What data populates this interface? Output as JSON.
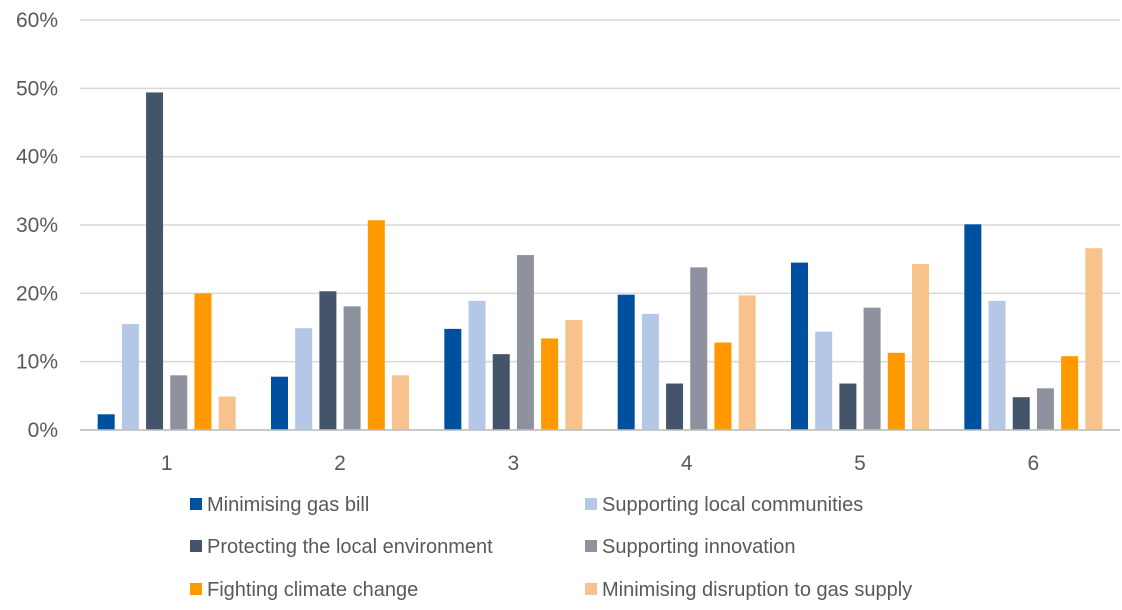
{
  "chart_data": {
    "type": "bar",
    "title": "",
    "xlabel": "",
    "ylabel": "",
    "categories": [
      "1",
      "2",
      "3",
      "4",
      "5",
      "6"
    ],
    "ylim": [
      0,
      60
    ],
    "y_ticks": [
      "0%",
      "10%",
      "20%",
      "30%",
      "40%",
      "50%",
      "60%"
    ],
    "y_tick_values": [
      0,
      10,
      20,
      30,
      40,
      50,
      60
    ],
    "y_unit": "%",
    "grid": "horizontal",
    "legend_position": "bottom",
    "series": [
      {
        "name": "Minimising gas bill",
        "color": "#0050A0",
        "values": [
          2.3,
          7.8,
          14.8,
          19.8,
          24.5,
          30.1
        ]
      },
      {
        "name": "Supporting local communities",
        "color": "#B4C7E7",
        "values": [
          15.5,
          14.9,
          18.9,
          17.0,
          14.4,
          18.9
        ]
      },
      {
        "name": "Protecting the local environment",
        "color": "#44546A",
        "values": [
          49.4,
          20.3,
          11.1,
          6.8,
          6.8,
          4.8
        ]
      },
      {
        "name": "Supporting innovation",
        "color": "#8E929E",
        "values": [
          8.0,
          18.1,
          25.6,
          23.8,
          17.9,
          6.1
        ]
      },
      {
        "name": "Fighting climate change",
        "color": "#FF9900",
        "values": [
          20.0,
          30.7,
          13.4,
          12.8,
          11.3,
          10.8
        ]
      },
      {
        "name": "Minimising disruption to gas supply",
        "color": "#F8C28C",
        "values": [
          4.9,
          8.0,
          16.1,
          19.7,
          24.3,
          26.6
        ]
      }
    ]
  }
}
